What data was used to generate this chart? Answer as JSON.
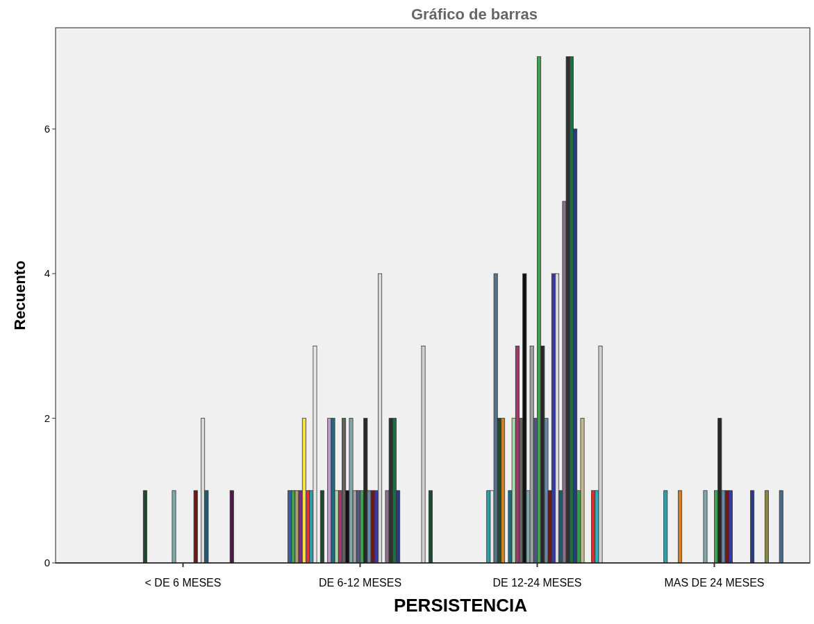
{
  "chart_data": {
    "type": "bar",
    "title": "Gráfico de barras",
    "xlabel": "PERSISTENCIA",
    "ylabel": "Recuento",
    "categories": [
      "< DE 6 MESES",
      "DE 6-12 MESES",
      "DE 12-24 MESES",
      "MAS DE 24 MESES"
    ],
    "ylim": [
      0,
      7.4
    ],
    "yticks": [
      0,
      2,
      4,
      6
    ],
    "series": [
      {
        "color": "#3a5fa8",
        "values": [
          null,
          1,
          null,
          null
        ]
      },
      {
        "color": "#3fa14a",
        "values": [
          null,
          1,
          null,
          null
        ]
      },
      {
        "color": "#a9a46c",
        "values": [
          null,
          1,
          null,
          null
        ]
      },
      {
        "color": "#7a2d7f",
        "values": [
          null,
          1,
          null,
          null
        ]
      },
      {
        "color": "#f0e040",
        "values": [
          null,
          2,
          null,
          null
        ]
      },
      {
        "color": "#e8323a",
        "values": [
          null,
          1,
          null,
          null
        ]
      },
      {
        "color": "#2aa0a8",
        "values": [
          null,
          1,
          1,
          1
        ]
      },
      {
        "color": "#e8e8e8",
        "values": [
          null,
          3,
          1,
          null
        ]
      },
      {
        "color": "#55748c",
        "values": [
          null,
          null,
          4,
          null
        ]
      },
      {
        "color": "#1f4a30",
        "values": [
          1,
          1,
          2,
          null
        ]
      },
      {
        "color": "#d08020",
        "values": [
          null,
          null,
          2,
          1
        ]
      },
      {
        "color": "#b89ad0",
        "values": [
          null,
          2,
          null,
          null
        ]
      },
      {
        "color": "#1f6a80",
        "values": [
          null,
          2,
          1,
          null
        ]
      },
      {
        "color": "#a8d8a8",
        "values": [
          null,
          1,
          2,
          null
        ]
      },
      {
        "color": "#a03868",
        "values": [
          null,
          1,
          3,
          null
        ]
      },
      {
        "color": "#606060",
        "values": [
          null,
          2,
          2,
          null
        ]
      },
      {
        "color": "#111111",
        "values": [
          null,
          1,
          4,
          null
        ]
      },
      {
        "color": "#80a8a8",
        "values": [
          1,
          2,
          1,
          1
        ]
      },
      {
        "color": "#a0a0a0",
        "values": [
          null,
          1,
          3,
          null
        ]
      },
      {
        "color": "#505880",
        "values": [
          null,
          1,
          2,
          null
        ]
      },
      {
        "color": "#40a050",
        "values": [
          null,
          1,
          7,
          1
        ]
      },
      {
        "color": "#282828",
        "values": [
          null,
          2,
          3,
          2
        ]
      },
      {
        "color": "#6888a8",
        "values": [
          null,
          1,
          2,
          1
        ]
      },
      {
        "color": "#701818",
        "values": [
          1,
          1,
          1,
          1
        ]
      },
      {
        "color": "#3838a8",
        "values": [
          null,
          1,
          4,
          1
        ]
      },
      {
        "color": "#d8d8d8",
        "values": [
          2,
          4,
          4,
          null
        ]
      },
      {
        "color": "#1f5a70",
        "values": [
          1,
          null,
          1,
          null
        ]
      },
      {
        "color": "#8a708a",
        "values": [
          null,
          1,
          5,
          null
        ]
      },
      {
        "color": "#303030",
        "values": [
          null,
          2,
          7,
          null
        ]
      },
      {
        "color": "#1a7040",
        "values": [
          null,
          2,
          7,
          null
        ]
      },
      {
        "color": "#2a3a80",
        "values": [
          null,
          1,
          6,
          1
        ]
      },
      {
        "color": "#30a050",
        "values": [
          null,
          null,
          1,
          null
        ]
      },
      {
        "color": "#c0b890",
        "values": [
          null,
          null,
          2,
          null
        ]
      },
      {
        "color": "#501848",
        "values": [
          1,
          null,
          null,
          null
        ]
      },
      {
        "color": "#8a8440",
        "values": [
          null,
          null,
          null,
          1
        ]
      },
      {
        "color": "#d83030",
        "values": [
          null,
          null,
          1,
          null
        ]
      },
      {
        "color": "#30b0c0",
        "values": [
          null,
          null,
          1,
          null
        ]
      },
      {
        "color": "#d0d0d0",
        "values": [
          null,
          3,
          3,
          null
        ]
      },
      {
        "color": "#4a6a88",
        "values": [
          null,
          null,
          null,
          1
        ]
      },
      {
        "color": "#1a4a30",
        "values": [
          null,
          1,
          null,
          null
        ]
      }
    ]
  }
}
